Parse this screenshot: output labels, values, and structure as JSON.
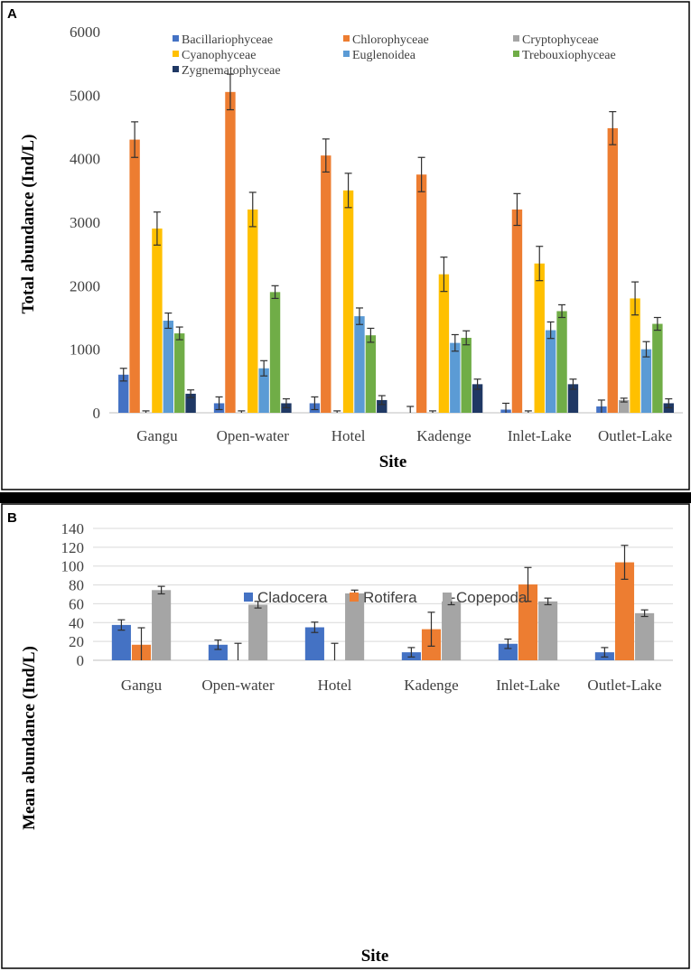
{
  "colors": {
    "Bacillariophyceae": "#4472C4",
    "Chlorophyceae": "#ED7D31",
    "Cryptophyceae": "#A5A5A5",
    "Cyanophyceae": "#FFC000",
    "Euglenoidea": "#5B9BD5",
    "Trebouxiophyceae": "#70AD47",
    "Zygnematophyceae": "#1F3864",
    "Cladocera": "#4472C4",
    "Rotifera": "#ED7D31",
    "Copepoda": "#A5A5A5"
  },
  "chart_data": [
    {
      "panel": "A",
      "type": "bar",
      "xlabel": "Site",
      "ylabel": "Total abundance  (Ind/L)",
      "ylim": [
        0,
        6000
      ],
      "yticks": [
        "0",
        "1000",
        "2000",
        "3000",
        "4000",
        "5000",
        "6000"
      ],
      "legend_position": "top",
      "categories": [
        "Gangu",
        "Open-water",
        "Hotel",
        "Kadenge",
        "Inlet-Lake",
        "Outlet-Lake"
      ],
      "series": [
        {
          "name": "Bacillariophyceae",
          "values": [
            600,
            150,
            150,
            0,
            50,
            100
          ],
          "errors": [
            100,
            100,
            100,
            100,
            100,
            100
          ]
        },
        {
          "name": "Chlorophyceae",
          "values": [
            4300,
            5050,
            4050,
            3750,
            3200,
            4480
          ],
          "errors": [
            280,
            280,
            260,
            270,
            250,
            260
          ]
        },
        {
          "name": "Cryptophyceae",
          "values": [
            0,
            0,
            0,
            0,
            0,
            200
          ],
          "errors": [
            30,
            30,
            30,
            30,
            30,
            30
          ]
        },
        {
          "name": "Cyanophyceae",
          "values": [
            2900,
            3200,
            3500,
            2180,
            2350,
            1800
          ],
          "errors": [
            260,
            270,
            270,
            270,
            270,
            260
          ]
        },
        {
          "name": "Euglenoidea",
          "values": [
            1450,
            700,
            1520,
            1100,
            1300,
            1000
          ],
          "errors": [
            120,
            120,
            130,
            130,
            130,
            120
          ]
        },
        {
          "name": "Trebouxiophyceae",
          "values": [
            1250,
            1900,
            1220,
            1180,
            1600,
            1400
          ],
          "errors": [
            100,
            100,
            110,
            110,
            100,
            100
          ]
        },
        {
          "name": "Zygnematophyceae",
          "values": [
            300,
            150,
            200,
            450,
            450,
            150
          ],
          "errors": [
            60,
            70,
            70,
            80,
            80,
            70
          ]
        }
      ]
    },
    {
      "panel": "B",
      "type": "bar",
      "xlabel": "Site",
      "ylabel": "Mean abundance (Ind/L)",
      "ylim": [
        0,
        140
      ],
      "yticks": [
        "0",
        "20",
        "40",
        "60",
        "80",
        "100",
        "120",
        "140"
      ],
      "legend_position": "top-center",
      "categories": [
        "Gangu",
        "Open-water",
        "Hotel",
        "Kadenge",
        "Inlet-Lake",
        "Outlet-Lake"
      ],
      "series": [
        {
          "name": "Cladocera",
          "values": [
            37.5,
            16.5,
            35,
            8.5,
            17.5,
            8.5
          ],
          "errors": [
            5.5,
            5,
            5.5,
            5,
            5,
            5
          ]
        },
        {
          "name": "Rotifera",
          "values": [
            16.5,
            0,
            0,
            33,
            80.5,
            104
          ],
          "errors": [
            18,
            18,
            18,
            18,
            18,
            18
          ]
        },
        {
          "name": "Copepoda",
          "values": [
            74.5,
            59,
            71,
            62.5,
            62.5,
            50
          ],
          "errors": [
            4,
            3.5,
            3.5,
            3.5,
            3.5,
            3.5
          ]
        }
      ]
    }
  ]
}
